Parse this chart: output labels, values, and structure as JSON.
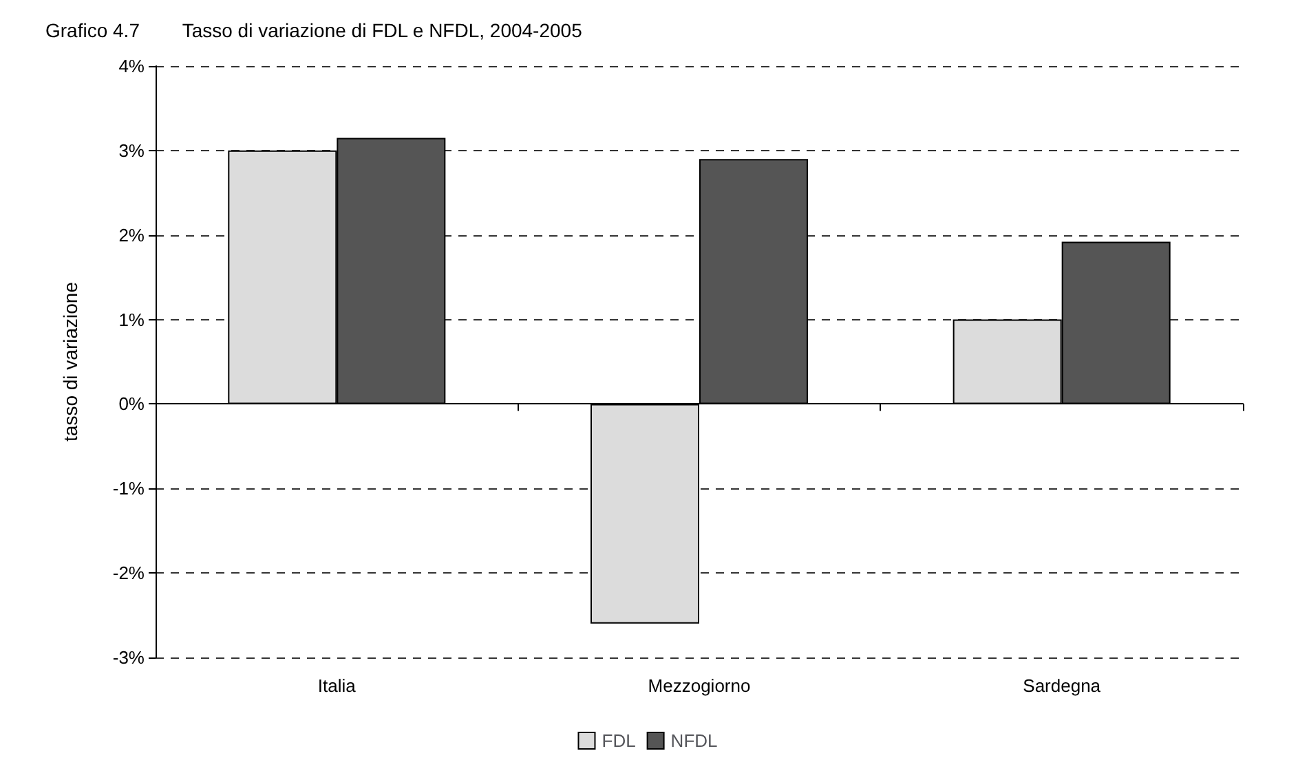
{
  "chart_data": {
    "type": "bar",
    "title": "Grafico 4.7        Tasso di variazione di FDL e NFDL, 2004-2005",
    "ylabel": "tasso di variazione",
    "categories": [
      "Italia",
      "Mezzogiorno",
      "Sardegna"
    ],
    "series": [
      {
        "name": "FDL",
        "color": "#dcdcdc",
        "values": [
          3.0,
          -2.6,
          1.0
        ]
      },
      {
        "name": "NFDL",
        "color": "#555555",
        "values": [
          3.15,
          2.9,
          1.92
        ]
      }
    ],
    "ylim": [
      -3,
      4
    ],
    "yticks": [
      {
        "value": -3,
        "label": "-3%"
      },
      {
        "value": -2,
        "label": "-2%"
      },
      {
        "value": -1,
        "label": "-1%"
      },
      {
        "value": 0,
        "label": "0%"
      },
      {
        "value": 1,
        "label": "1%"
      },
      {
        "value": 2,
        "label": "2%"
      },
      {
        "value": 3,
        "label": "3%"
      },
      {
        "value": 4,
        "label": "4%"
      }
    ],
    "grid": "y",
    "legend": "bottom"
  }
}
